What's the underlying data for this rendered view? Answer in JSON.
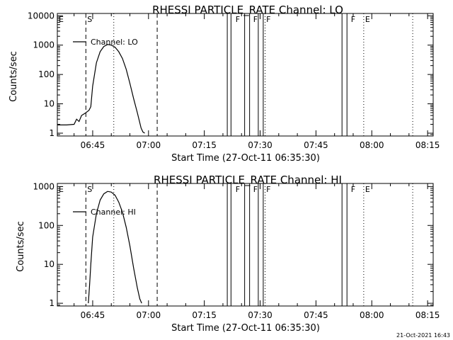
{
  "timestamp": "21-Oct-2021 16:43",
  "chart_data": [
    {
      "type": "line",
      "title": "RHESSI PARTICLE_RATE Channel: LO",
      "xlabel": "Start Time (27-Oct-11 06:35:30)",
      "ylabel": "Counts/sec",
      "yscale": "log",
      "xlim": [
        "06:35:30",
        "08:16:30"
      ],
      "ylim": [
        0.8,
        12000
      ],
      "x_ticks": [
        "06:45",
        "07:00",
        "07:15",
        "07:30",
        "07:45",
        "08:00",
        "08:15"
      ],
      "y_ticks": [
        {
          "value": 1,
          "label": "1"
        },
        {
          "value": 10,
          "label": "10"
        },
        {
          "value": 100,
          "label": "100"
        },
        {
          "value": 1000,
          "label": "1000"
        },
        {
          "value": 10000,
          "label": "10000"
        }
      ],
      "legend": {
        "label": "Channel: LO",
        "position": "top-left"
      },
      "series": [
        {
          "x": [
            "06:35:30",
            "06:38:00",
            "06:40:00",
            "06:40:40",
            "06:41:20",
            "06:42:00",
            "06:43:00",
            "06:44:00",
            "06:44:30",
            "06:45:00",
            "06:46:00",
            "06:47:00",
            "06:48:00",
            "06:49:00",
            "06:50:00",
            "06:51:00",
            "06:52:00",
            "06:53:00",
            "06:54:00",
            "06:55:00",
            "06:56:00",
            "06:57:00",
            "06:58:00",
            "06:58:30",
            "06:59:00"
          ],
          "y": [
            1.9,
            1.9,
            2,
            3,
            2.5,
            4,
            4.8,
            6,
            8,
            40,
            250,
            600,
            900,
            1050,
            1000,
            850,
            600,
            350,
            150,
            50,
            15,
            5,
            1.5,
            1.1,
            1
          ]
        }
      ],
      "flags": [
        {
          "label": "E",
          "time": "06:35:30"
        },
        {
          "label": "S",
          "time": "06:43:10"
        },
        {
          "label": "F",
          "time": "07:23:00"
        },
        {
          "label": "F",
          "time": "07:27:45"
        },
        {
          "label": "F",
          "time": "07:31:15"
        },
        {
          "label": "F",
          "time": "07:54:00"
        },
        {
          "label": "E",
          "time": "07:57:50"
        }
      ],
      "dashed_lines": [
        "06:43:10",
        "07:02:20"
      ],
      "dotted_lines": [
        "06:50:40",
        "07:31:20",
        "07:57:50",
        "08:11:00"
      ],
      "gaps": [
        {
          "from": "07:21:10",
          "to": "07:22:10"
        },
        {
          "from": "07:25:50",
          "to": "07:27:10"
        },
        {
          "from": "07:29:30",
          "to": "07:30:50"
        },
        {
          "from": "07:52:00",
          "to": "07:53:20"
        }
      ]
    },
    {
      "type": "line",
      "title": "RHESSI PARTICLE_RATE Channel: HI",
      "xlabel": "Start Time (27-Oct-11 06:35:30)",
      "ylabel": "Counts/sec",
      "yscale": "log",
      "xlim": [
        "06:35:30",
        "08:16:30"
      ],
      "ylim": [
        0.85,
        1200
      ],
      "x_ticks": [
        "06:45",
        "07:00",
        "07:15",
        "07:30",
        "07:45",
        "08:00",
        "08:15"
      ],
      "y_ticks": [
        {
          "value": 1,
          "label": "1"
        },
        {
          "value": 10,
          "label": "10"
        },
        {
          "value": 100,
          "label": "100"
        },
        {
          "value": 1000,
          "label": "1000"
        }
      ],
      "legend": {
        "label": "Channel: HI",
        "position": "top-left"
      },
      "series": [
        {
          "x": [
            "06:43:50",
            "06:44:10",
            "06:44:30",
            "06:45:00",
            "06:46:00",
            "06:47:00",
            "06:48:00",
            "06:49:00",
            "06:50:00",
            "06:51:00",
            "06:52:00",
            "06:53:00",
            "06:54:00",
            "06:55:00",
            "06:56:00",
            "06:57:00",
            "06:57:40",
            "06:58:10"
          ],
          "y": [
            1,
            3,
            10,
            50,
            200,
            450,
            650,
            750,
            720,
            600,
            400,
            220,
            90,
            30,
            8,
            2.5,
            1.3,
            1
          ]
        }
      ],
      "flags": [
        {
          "label": "E",
          "time": "06:35:30"
        },
        {
          "label": "S",
          "time": "06:43:10"
        },
        {
          "label": "F",
          "time": "07:23:00"
        },
        {
          "label": "F",
          "time": "07:27:45"
        },
        {
          "label": "F",
          "time": "07:31:15"
        },
        {
          "label": "F",
          "time": "07:54:00"
        },
        {
          "label": "E",
          "time": "07:57:50"
        }
      ],
      "dashed_lines": [
        "06:43:10",
        "07:02:20"
      ],
      "dotted_lines": [
        "06:50:40",
        "07:31:20",
        "07:57:50",
        "08:11:00"
      ],
      "gaps": [
        {
          "from": "07:21:10",
          "to": "07:22:10"
        },
        {
          "from": "07:25:50",
          "to": "07:27:10"
        },
        {
          "from": "07:29:30",
          "to": "07:30:50"
        },
        {
          "from": "07:52:00",
          "to": "07:53:20"
        }
      ]
    }
  ]
}
